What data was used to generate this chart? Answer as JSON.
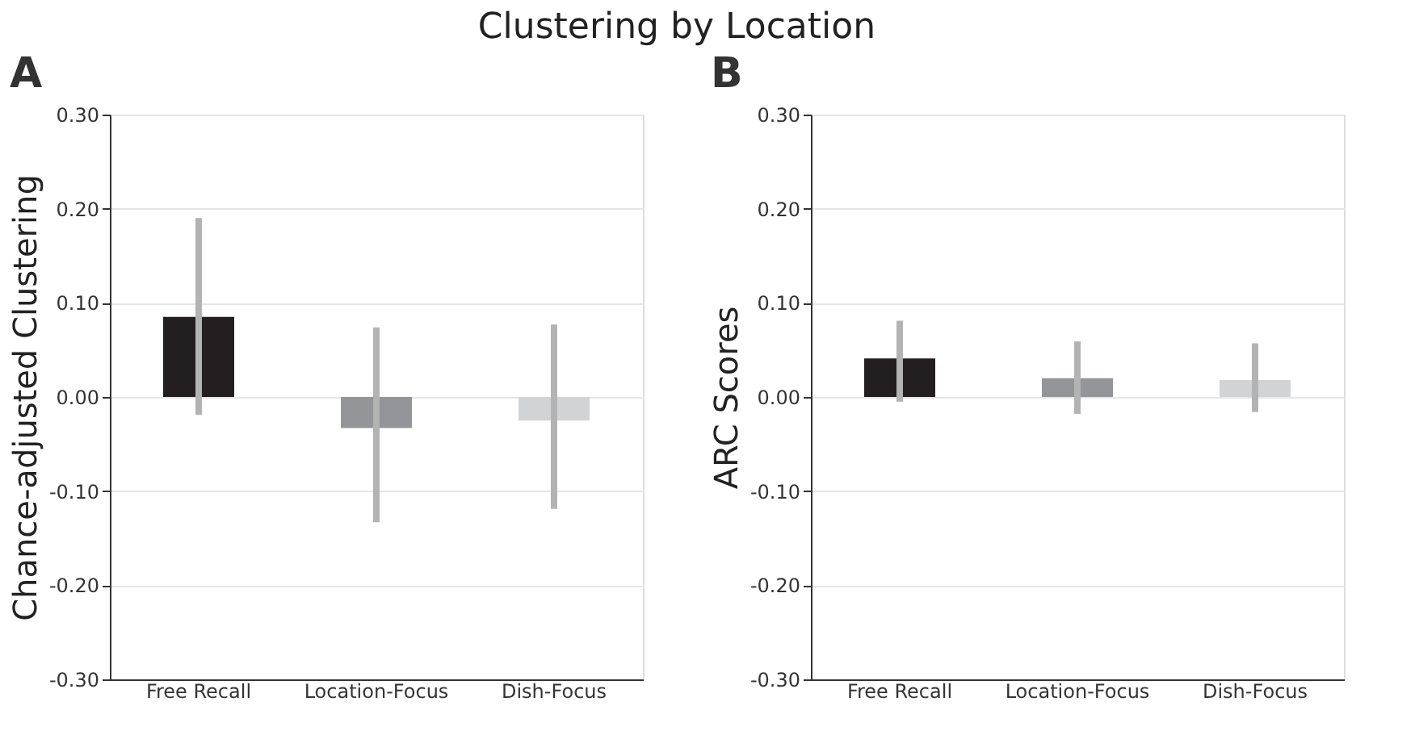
{
  "chart_data": [
    {
      "type": "bar",
      "title": "A",
      "ylabel": "Chance-adjusted Clustering",
      "annotations": [
        "Clustering by Location"
      ],
      "categories": [
        "Free Recall",
        "Location-Focus",
        "Dish-Focus"
      ],
      "values": [
        0.085,
        -0.033,
        -0.025
      ],
      "colors": [
        "#231f20",
        "#939598",
        "#d1d3d4"
      ],
      "errors": [
        [
          -0.019,
          0.19
        ],
        [
          -0.133,
          0.074
        ],
        [
          -0.119,
          0.077
        ]
      ],
      "ylim": [
        -0.3,
        0.3
      ],
      "yticks": [
        {
          "value": -0.3,
          "label": "-0.30"
        },
        {
          "value": -0.2,
          "label": "-0.20"
        },
        {
          "value": -0.1,
          "label": "-0.10"
        },
        {
          "value": 0,
          "label": "0.00"
        },
        {
          "value": 0.1,
          "label": "0.10"
        },
        {
          "value": 0.2,
          "label": "0.20"
        },
        {
          "value": 0.3,
          "label": "0.30"
        }
      ],
      "grid": "y",
      "legend": false
    },
    {
      "type": "bar",
      "title": "B",
      "ylabel": "ARC Scores",
      "categories": [
        "Free Recall",
        "Location-Focus",
        "Dish-Focus"
      ],
      "values": [
        0.041,
        0.02,
        0.018
      ],
      "colors": [
        "#231f20",
        "#939598",
        "#d1d3d4"
      ],
      "errors": [
        [
          -0.005,
          0.081
        ],
        [
          -0.018,
          0.059
        ],
        [
          -0.016,
          0.057
        ]
      ],
      "ylim": [
        -0.3,
        0.3
      ],
      "yticks": [
        {
          "value": -0.3,
          "label": "-0.30"
        },
        {
          "value": -0.2,
          "label": "-0.20"
        },
        {
          "value": -0.1,
          "label": "-0.10"
        },
        {
          "value": 0,
          "label": "0.00"
        },
        {
          "value": 0.1,
          "label": "0.10"
        },
        {
          "value": 0.2,
          "label": "0.20"
        },
        {
          "value": 0.3,
          "label": "0.30"
        }
      ],
      "grid": "y",
      "legend": false
    }
  ]
}
